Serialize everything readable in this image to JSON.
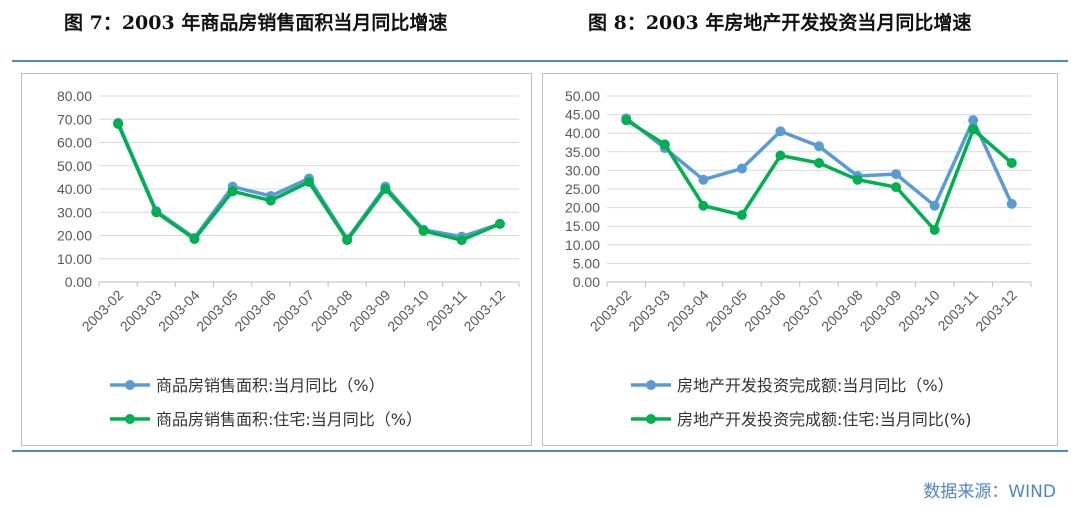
{
  "titles": {
    "left": "图 7：2003 年商品房销售面积当月同比增速",
    "right": "图 8：2003 年房地产开发投资当月同比增速"
  },
  "source": "数据来源：WIND",
  "colors": {
    "series1": "#5b9bd5",
    "series2": "#00b050",
    "rule": "#4f86c6",
    "grid": "#d9d9d9"
  },
  "chart_data": [
    {
      "type": "line",
      "categories": [
        "2003-02",
        "2003-03",
        "2003-04",
        "2003-05",
        "2003-06",
        "2003-07",
        "2003-08",
        "2003-09",
        "2003-10",
        "2003-11",
        "2003-12"
      ],
      "ylim": [
        0,
        80
      ],
      "yticks": [
        "0.00",
        "10.00",
        "20.00",
        "30.00",
        "40.00",
        "50.00",
        "60.00",
        "70.00",
        "80.00"
      ],
      "grid": true,
      "legend": "bottom",
      "series": [
        {
          "name": "商品房销售面积:当月同比（%）",
          "values": [
            68.5,
            30.5,
            19.0,
            41.0,
            37.0,
            44.5,
            18.5,
            41.0,
            22.5,
            19.5,
            25.0
          ]
        },
        {
          "name": "商品房销售面积:住宅:当月同比（%）",
          "values": [
            68.0,
            30.0,
            18.5,
            39.0,
            35.0,
            43.0,
            18.0,
            40.0,
            22.0,
            18.0,
            25.0
          ]
        }
      ]
    },
    {
      "type": "line",
      "categories": [
        "2003-02",
        "2003-03",
        "2003-04",
        "2003-05",
        "2003-06",
        "2003-07",
        "2003-08",
        "2003-09",
        "2003-10",
        "2003-11",
        "2003-12"
      ],
      "ylim": [
        0,
        50
      ],
      "yticks": [
        "0.00",
        "5.00",
        "10.00",
        "15.00",
        "20.00",
        "25.00",
        "30.00",
        "35.00",
        "40.00",
        "45.00",
        "50.00"
      ],
      "grid": true,
      "legend": "bottom",
      "series": [
        {
          "name": "房地产开发投资完成额:当月同比（%）",
          "values": [
            44.0,
            36.0,
            27.5,
            30.5,
            40.5,
            36.5,
            28.5,
            29.0,
            20.5,
            43.5,
            21.0
          ]
        },
        {
          "name": "房地产开发投资完成额:住宅:当月同比(%)",
          "values": [
            43.5,
            37.0,
            20.5,
            18.0,
            34.0,
            32.0,
            27.5,
            25.5,
            14.0,
            41.0,
            32.0
          ]
        }
      ]
    }
  ]
}
